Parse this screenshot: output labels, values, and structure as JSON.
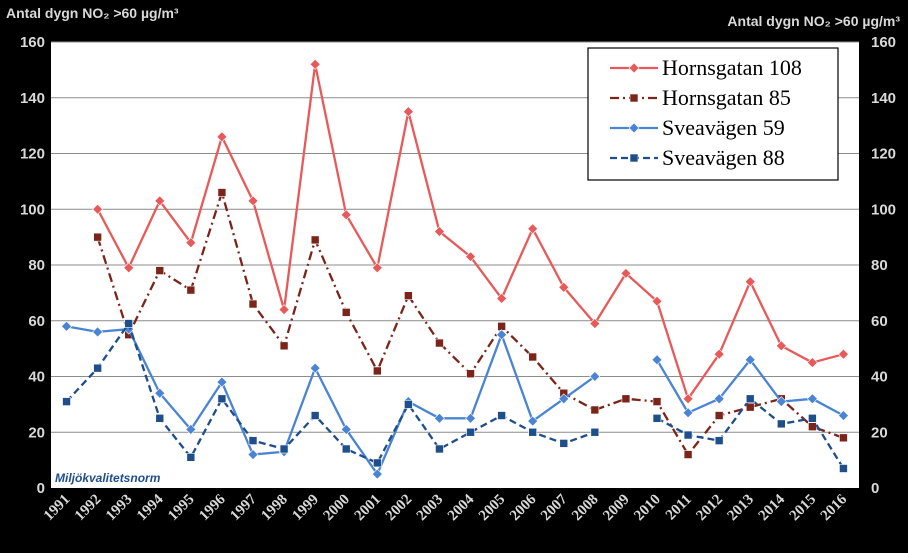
{
  "chart_data": {
    "type": "line",
    "title": "",
    "ylabel_left": "Antal dygn NO₂ >60 µg/m³",
    "ylabel_right": "Antal dygn NO₂ >60 µg/m³",
    "xlabel": "",
    "ylim": [
      0,
      160
    ],
    "yticks": [
      "0",
      "20",
      "40",
      "60",
      "80",
      "100",
      "120",
      "140",
      "160"
    ],
    "grid": true,
    "legend_position": "top-right",
    "annotation": "Miljökvalitetsnorm",
    "annotation_value": 7,
    "categories": [
      "1991",
      "1992",
      "1993",
      "1994",
      "1995",
      "1996",
      "1997",
      "1998",
      "1999",
      "2000",
      "2001",
      "2002",
      "2003",
      "2004",
      "2005",
      "2006",
      "2007",
      "2008",
      "2009",
      "2010",
      "2011",
      "2012",
      "2013",
      "2014",
      "2015",
      "2016"
    ],
    "series": [
      {
        "name": "Hornsgatan 108",
        "color": "#e8595a",
        "marker": "diamond",
        "line": "solid",
        "values": [
          null,
          100,
          79,
          103,
          88,
          126,
          103,
          64,
          152,
          98,
          79,
          135,
          92,
          83,
          68,
          93,
          72,
          59,
          77,
          67,
          32,
          48,
          74,
          51,
          45,
          48
        ]
      },
      {
        "name": "Hornsgatan 85",
        "color": "#7b2419",
        "marker": "square",
        "line": "dashdot",
        "values": [
          null,
          90,
          55,
          78,
          71,
          106,
          66,
          51,
          89,
          63,
          42,
          69,
          52,
          41,
          58,
          47,
          34,
          28,
          32,
          31,
          12,
          26,
          29,
          32,
          22,
          18
        ]
      },
      {
        "name": "Sveavägen 59",
        "color": "#4a84d4",
        "marker": "diamond",
        "line": "solid",
        "values": [
          58,
          56,
          57,
          34,
          21,
          38,
          12,
          13,
          43,
          21,
          5,
          31,
          25,
          25,
          55,
          24,
          32,
          40,
          null,
          46,
          27,
          32,
          46,
          31,
          32,
          26
        ]
      },
      {
        "name": "Sveavägen 88",
        "color": "#1f4e8c",
        "marker": "square",
        "line": "dashed",
        "values": [
          31,
          43,
          59,
          25,
          11,
          32,
          17,
          14,
          26,
          14,
          9,
          30,
          14,
          20,
          26,
          20,
          16,
          20,
          null,
          25,
          19,
          17,
          32,
          23,
          25,
          7
        ]
      }
    ]
  }
}
